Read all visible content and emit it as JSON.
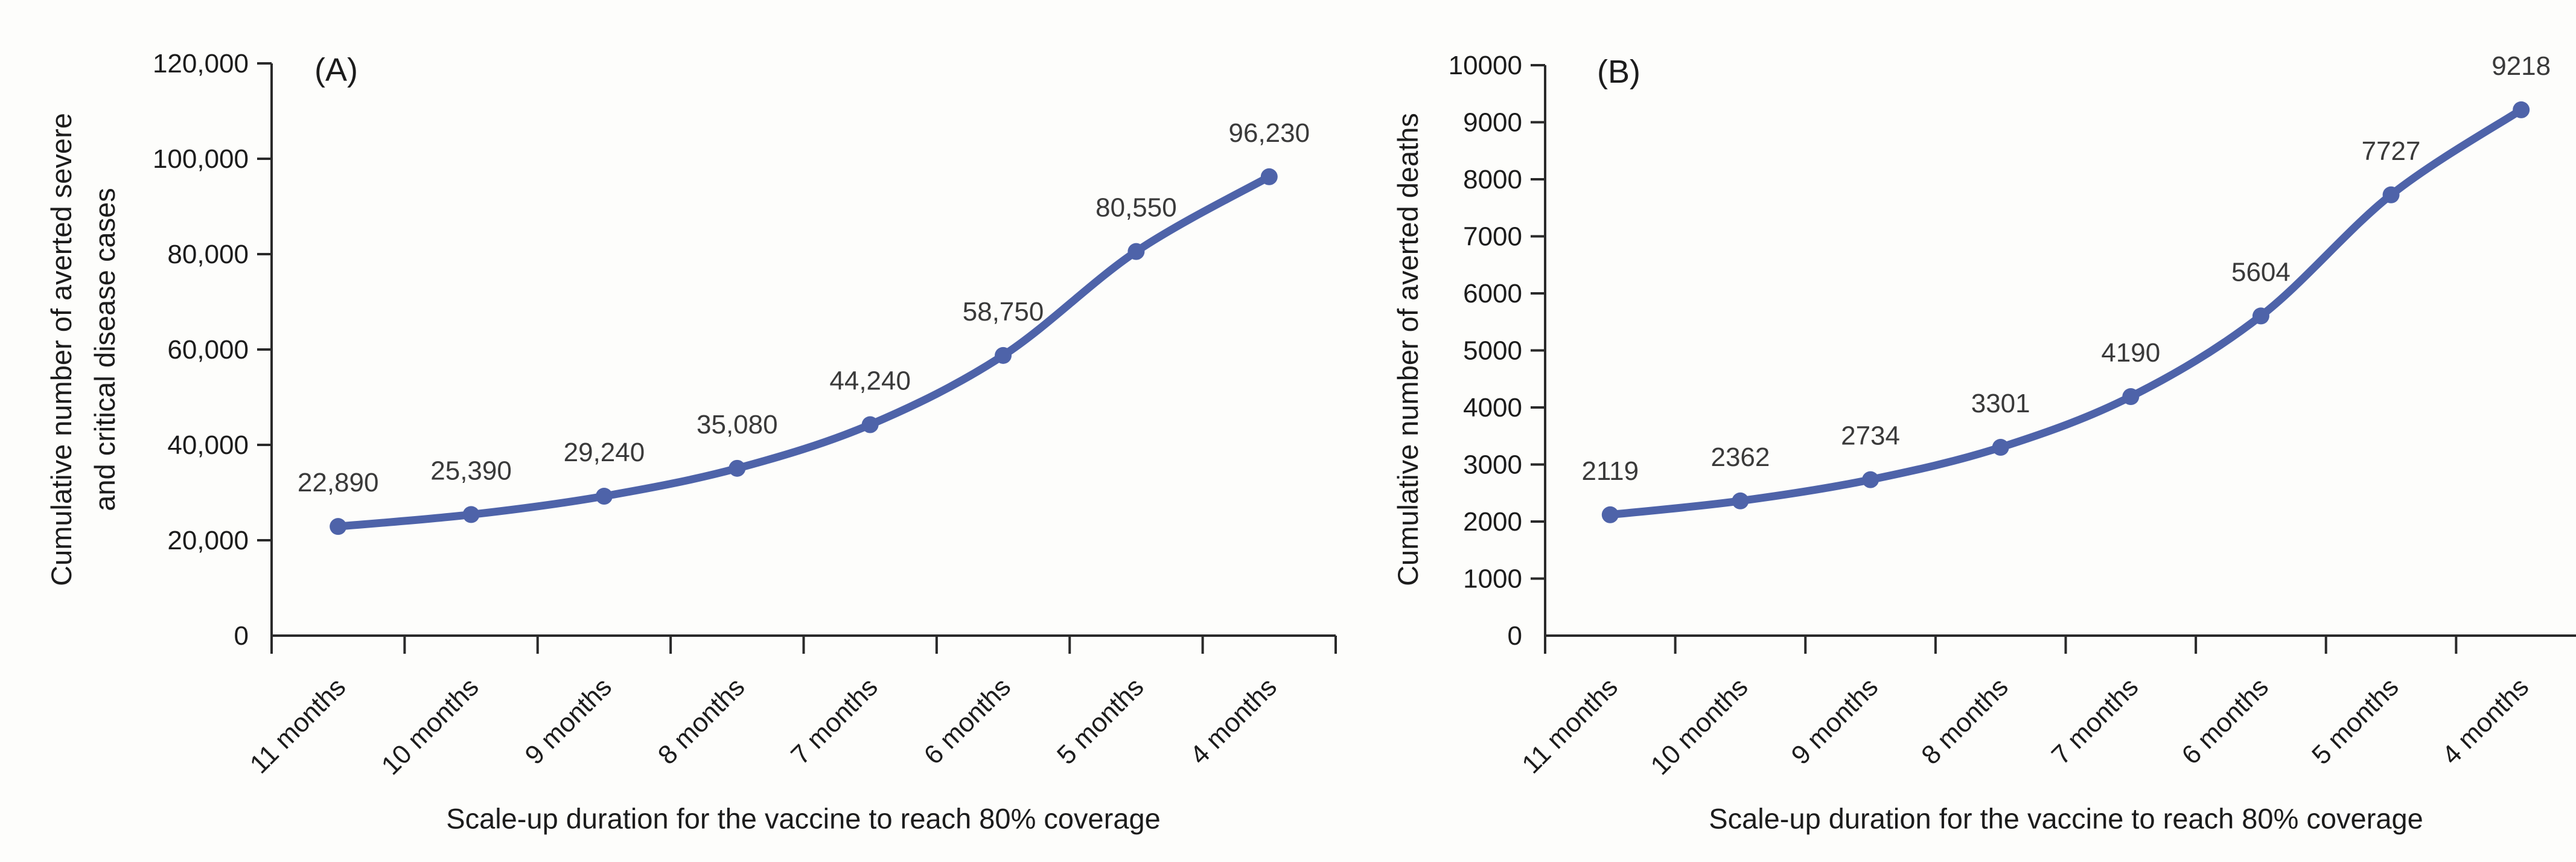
{
  "figure": {
    "background": "#fdfdfb",
    "axis_color": "#2a2a2a",
    "tick_text_color": "#1c1c1c",
    "data_label_color": "#3a3a3a"
  },
  "chart_data": [
    {
      "type": "line",
      "panel": "(A)",
      "ylabel": "Cumulative number of averted severe and critical disease cases",
      "ylabel_lines": [
        "Cumulative number of averted severe",
        "and critical disease cases"
      ],
      "xlabel": "Scale-up duration for the vaccine to reach 80% coverage",
      "categories": [
        "11 months",
        "10 months",
        "9 months",
        "8 months",
        "7 months",
        "6 months",
        "5 months",
        "4 months"
      ],
      "series": [
        {
          "name": "Averted severe and critical disease cases",
          "values": [
            22890,
            25390,
            29240,
            35080,
            44240,
            58750,
            80550,
            96230
          ]
        }
      ],
      "point_labels": [
        "22,890",
        "25,390",
        "29,240",
        "35,080",
        "44,240",
        "58,750",
        "80,550",
        "96,230"
      ],
      "ylim": [
        0,
        120000
      ],
      "ytick_step": 20000,
      "ytick_labels": [
        "0",
        "20,000",
        "40,000",
        "60,000",
        "80,000",
        "100,000",
        "120,000"
      ],
      "grid": false,
      "legend": false,
      "marker": "circle",
      "line_color": "#4E63A9"
    },
    {
      "type": "line",
      "panel": "(B)",
      "ylabel": "Cumulative number of averted deaths",
      "ylabel_lines": [
        "Cumulative number of averted deaths"
      ],
      "xlabel": "Scale-up duration for the vaccine to reach 80% coverage",
      "categories": [
        "11 months",
        "10 months",
        "9 months",
        "8 months",
        "7 months",
        "6 months",
        "5 months",
        "4 months"
      ],
      "series": [
        {
          "name": "Averted deaths",
          "values": [
            2119,
            2362,
            2734,
            3301,
            4190,
            5604,
            7727,
            9218
          ]
        }
      ],
      "point_labels": [
        "2119",
        "2362",
        "2734",
        "3301",
        "4190",
        "5604",
        "7727",
        "9218"
      ],
      "ylim": [
        0,
        10000
      ],
      "ytick_step": 1000,
      "ytick_labels": [
        "0",
        "1000",
        "2000",
        "3000",
        "4000",
        "5000",
        "6000",
        "7000",
        "8000",
        "9000",
        "10000"
      ],
      "grid": false,
      "legend": false,
      "marker": "circle",
      "line_color": "#4E63A9"
    }
  ]
}
